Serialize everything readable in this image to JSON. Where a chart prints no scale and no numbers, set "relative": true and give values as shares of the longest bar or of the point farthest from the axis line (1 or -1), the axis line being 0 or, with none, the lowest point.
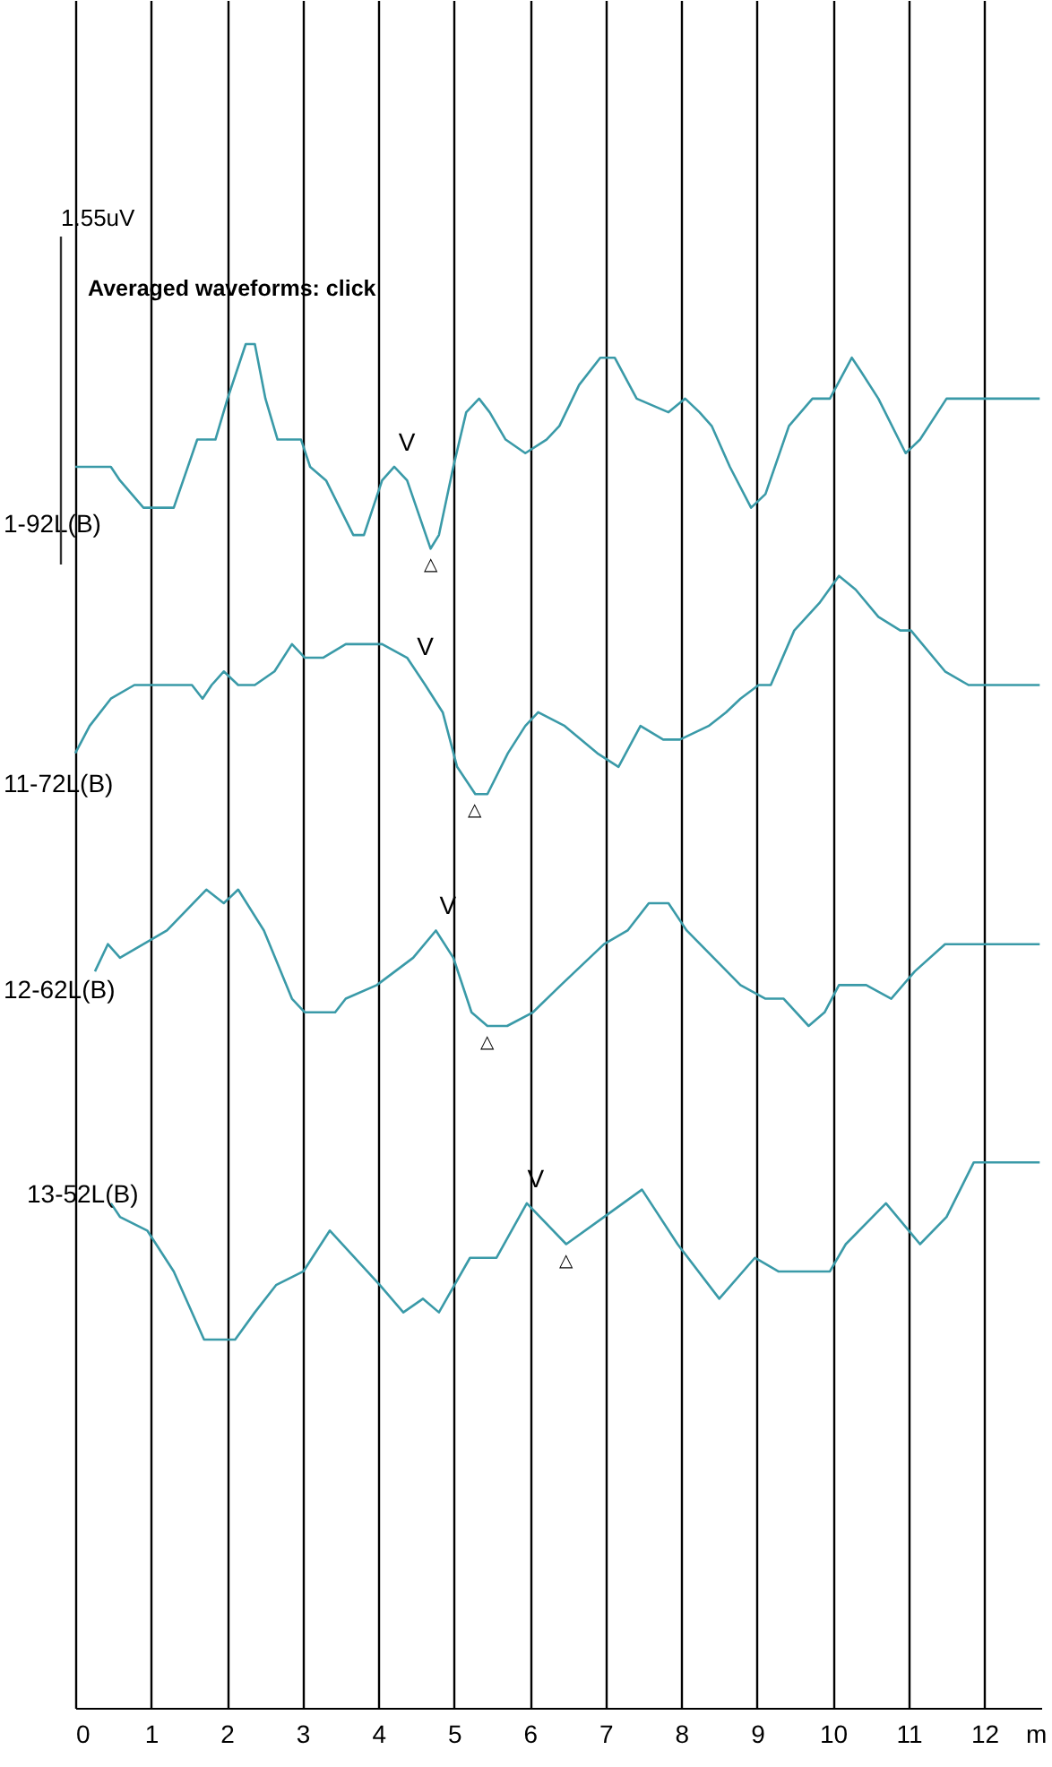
{
  "chart_data": {
    "type": "line",
    "title": "Averaged waveforms: click",
    "xlabel": "m",
    "relative": true,
    "xlim": [
      0,
      12.75
    ],
    "xticks": [
      0,
      1,
      2,
      3,
      4,
      5,
      6,
      7,
      8,
      9,
      10,
      11,
      12
    ],
    "grid": "x",
    "annotations": [
      "1.55uV",
      {
        "text": "V",
        "x": 4.26,
        "y": 0.91
      },
      {
        "text": "△",
        "x": 4.69,
        "y": 0.85
      },
      {
        "text": "V",
        "x": 4.5,
        "y": 0.76
      },
      {
        "text": "△",
        "x": 5.28,
        "y": 0.67
      },
      {
        "text": "V",
        "x": 4.8,
        "y": 0.57
      },
      {
        "text": "△",
        "x": 5.44,
        "y": 0.5
      },
      {
        "text": "V",
        "x": 5.96,
        "y": 0.37
      },
      {
        "text": "△",
        "x": 6.48,
        "y": 0.34
      }
    ],
    "series": [
      {
        "name": "1-92L(B)",
        "color": "#3a9aa8",
        "x": [
          0,
          0.14,
          0.36,
          0.47,
          0.59,
          0.9,
          1.09,
          1.3,
          1.61,
          1.68,
          1.85,
          2.01,
          2.25,
          2.37,
          2.51,
          2.67,
          2.86,
          2.98,
          3.1,
          3.31,
          3.67,
          3.81,
          4.05,
          4.21,
          4.38,
          4.69,
          4.8,
          4.99,
          5.16,
          5.33,
          5.47,
          5.68,
          5.94,
          6.22,
          6.39,
          6.65,
          6.93,
          7.12,
          7.41,
          7.83,
          8.05,
          8.24,
          8.4,
          8.64,
          8.92,
          9.11,
          9.42,
          9.73,
          9.96,
          10.25,
          10.37,
          10.6,
          10.96,
          11.15,
          11.5,
          11.72,
          11.95,
          12.73
        ],
        "values": [
          0.91,
          0.91,
          0.91,
          0.91,
          0.9,
          0.88,
          0.88,
          0.88,
          0.93,
          0.93,
          0.93,
          0.96,
          1,
          1,
          0.96,
          0.93,
          0.93,
          0.93,
          0.91,
          0.9,
          0.86,
          0.86,
          0.9,
          0.91,
          0.9,
          0.85,
          0.86,
          0.91,
          0.95,
          0.96,
          0.95,
          0.93,
          0.92,
          0.93,
          0.94,
          0.97,
          0.99,
          0.99,
          0.96,
          0.95,
          0.96,
          0.95,
          0.94,
          0.91,
          0.88,
          0.89,
          0.94,
          0.96,
          0.96,
          0.99,
          0.98,
          0.96,
          0.92,
          0.93,
          0.96,
          0.96,
          0.96,
          0.96
        ]
      },
      {
        "name": "11-72L(B)",
        "color": "#3a9aa8",
        "x": [
          0,
          0.19,
          0.47,
          0.78,
          1.33,
          1.54,
          1.68,
          1.8,
          1.96,
          2.15,
          2.37,
          2.63,
          2.86,
          3.03,
          3.27,
          3.57,
          3.81,
          4.05,
          4.38,
          4.62,
          4.85,
          5.04,
          5.28,
          5.44,
          5.71,
          5.94,
          6.11,
          6.46,
          6.89,
          7.17,
          7.46,
          7.76,
          7.98,
          8.36,
          8.59,
          8.78,
          9.02,
          9.18,
          9.49,
          9.82,
          10.08,
          10.3,
          10.6,
          10.89,
          11.03,
          11.48,
          11.79,
          12.73
        ],
        "values": [
          0.7,
          0.72,
          0.74,
          0.75,
          0.75,
          0.75,
          0.74,
          0.75,
          0.76,
          0.75,
          0.75,
          0.76,
          0.78,
          0.77,
          0.77,
          0.78,
          0.78,
          0.78,
          0.77,
          0.75,
          0.73,
          0.69,
          0.67,
          0.67,
          0.7,
          0.72,
          0.73,
          0.72,
          0.7,
          0.69,
          0.72,
          0.71,
          0.71,
          0.72,
          0.73,
          0.74,
          0.75,
          0.75,
          0.79,
          0.81,
          0.83,
          0.82,
          0.8,
          0.79,
          0.79,
          0.76,
          0.75,
          0.75
        ]
      },
      {
        "name": "12-62L(B)",
        "color": "#3a9aa8",
        "x": [
          0.26,
          0.43,
          0.59,
          0.9,
          1.21,
          1.73,
          1.96,
          2.15,
          2.49,
          2.86,
          3.03,
          3.43,
          3.57,
          3.98,
          4.46,
          4.76,
          4.99,
          5.23,
          5.44,
          5.7,
          6.04,
          6.41,
          6.98,
          7.29,
          7.57,
          7.83,
          8.07,
          8.78,
          9.11,
          9.35,
          9.68,
          9.89,
          10.08,
          10.44,
          10.77,
          11.08,
          11.48,
          11.79,
          12.73
        ],
        "values": [
          0.54,
          0.56,
          0.55,
          0.56,
          0.57,
          0.6,
          0.59,
          0.6,
          0.57,
          0.52,
          0.51,
          0.51,
          0.52,
          0.53,
          0.55,
          0.57,
          0.55,
          0.51,
          0.5,
          0.5,
          0.51,
          0.53,
          0.56,
          0.57,
          0.59,
          0.59,
          0.57,
          0.53,
          0.52,
          0.52,
          0.5,
          0.51,
          0.53,
          0.53,
          0.52,
          0.54,
          0.56,
          0.56,
          0.56
        ]
      },
      {
        "name": "13-52L(B)",
        "color": "#3a9aa8",
        "x": [
          0.47,
          0.59,
          0.95,
          1.3,
          1.7,
          2.11,
          2.37,
          2.65,
          3.01,
          3.36,
          4.02,
          4.33,
          4.59,
          4.8,
          5.21,
          5.56,
          5.96,
          6.48,
          6.98,
          7.48,
          7.95,
          8.5,
          8.97,
          9.28,
          9.63,
          9.96,
          10.17,
          10.7,
          11.15,
          11.5,
          11.86,
          12.73
        ],
        "values": [
          0.37,
          0.36,
          0.35,
          0.32,
          0.27,
          0.27,
          0.29,
          0.31,
          0.32,
          0.35,
          0.31,
          0.29,
          0.3,
          0.29,
          0.33,
          0.33,
          0.37,
          0.34,
          0.36,
          0.38,
          0.34,
          0.3,
          0.33,
          0.32,
          0.32,
          0.32,
          0.34,
          0.37,
          0.34,
          0.36,
          0.4,
          0.4
        ]
      }
    ]
  }
}
